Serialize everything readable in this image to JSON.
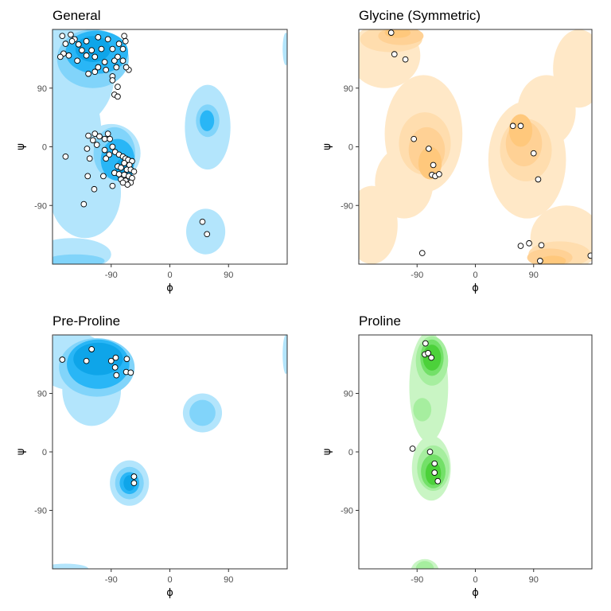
{
  "chart_data": [
    {
      "type": "scatter",
      "title": "General",
      "xlabel": "ϕ",
      "ylabel": "ψ",
      "xlim": [
        -180,
        180
      ],
      "ylim": [
        -180,
        180
      ],
      "xticks": [
        -90,
        0,
        90
      ],
      "yticks": [
        -90,
        0,
        90
      ],
      "colors": [
        "#B3E5FC",
        "#81D4FA",
        "#29B6F6",
        "#0EA5E9"
      ],
      "contours": [
        {
          "level": 1,
          "blobs": [
            [
              -165,
              110,
              80,
              85
            ],
            [
              -160,
              20,
              55,
              95
            ],
            [
              -130,
              -70,
              55,
              70
            ],
            [
              -90,
              -10,
              45,
              45
            ],
            [
              -150,
              -165,
              60,
              25
            ],
            [
              58,
              30,
              35,
              65
            ],
            [
              55,
              -130,
              30,
              35
            ],
            [
              178,
              150,
              5,
              25
            ]
          ]
        },
        {
          "level": 2,
          "blobs": [
            [
              -118,
              135,
              55,
              45
            ],
            [
              -85,
              -10,
              32,
              40
            ],
            [
              -145,
              -175,
              45,
              10
            ],
            [
              58,
              40,
              18,
              25
            ]
          ]
        },
        {
          "level": 3,
          "blobs": [
            [
              -112,
              145,
              48,
              33
            ],
            [
              -80,
              -20,
              26,
              32
            ],
            [
              57,
              40,
              11,
              16
            ]
          ]
        },
        {
          "level": 4,
          "blobs": [
            [
              -118,
              150,
              27,
              20
            ],
            [
              -70,
              -35,
              14,
              18
            ]
          ]
        }
      ],
      "points": [
        [
          -165,
          170
        ],
        [
          -152,
          172
        ],
        [
          -146,
          165
        ],
        [
          -160,
          158
        ],
        [
          -150,
          162
        ],
        [
          -140,
          157
        ],
        [
          -128,
          162
        ],
        [
          -110,
          168
        ],
        [
          -95,
          165
        ],
        [
          -70,
          170
        ],
        [
          -68,
          162
        ],
        [
          -78,
          158
        ],
        [
          -72,
          150
        ],
        [
          -88,
          150
        ],
        [
          -105,
          150
        ],
        [
          -120,
          148
        ],
        [
          -135,
          148
        ],
        [
          -163,
          143
        ],
        [
          -168,
          138
        ],
        [
          -155,
          140
        ],
        [
          -128,
          140
        ],
        [
          -115,
          138
        ],
        [
          -80,
          138
        ],
        [
          -72,
          132
        ],
        [
          -85,
          132
        ],
        [
          -100,
          130
        ],
        [
          -142,
          132
        ],
        [
          -98,
          118
        ],
        [
          -63,
          118
        ],
        [
          -67,
          122
        ],
        [
          -82,
          122
        ],
        [
          -110,
          122
        ],
        [
          -115,
          115
        ],
        [
          -125,
          112
        ],
        [
          -88,
          108
        ],
        [
          -88,
          102
        ],
        [
          -80,
          92
        ],
        [
          -85,
          80
        ],
        [
          -80,
          77
        ],
        [
          -125,
          17
        ],
        [
          -115,
          20
        ],
        [
          -108,
          16
        ],
        [
          -95,
          20
        ],
        [
          -100,
          12
        ],
        [
          -118,
          10
        ],
        [
          -92,
          12
        ],
        [
          -127,
          -3
        ],
        [
          -112,
          3
        ],
        [
          -88,
          0
        ],
        [
          -100,
          -5
        ],
        [
          -84,
          -8
        ],
        [
          -78,
          -12
        ],
        [
          -72,
          -15
        ],
        [
          -68,
          -18
        ],
        [
          -64,
          -20
        ],
        [
          -58,
          -22
        ],
        [
          -70,
          -25
        ],
        [
          -62,
          -28
        ],
        [
          -80,
          -30
        ],
        [
          -75,
          -32
        ],
        [
          -66,
          -35
        ],
        [
          -60,
          -35
        ],
        [
          -55,
          -38
        ],
        [
          -85,
          -40
        ],
        [
          -78,
          -42
        ],
        [
          -70,
          -43
        ],
        [
          -63,
          -45
        ],
        [
          -58,
          -48
        ],
        [
          -75,
          -50
        ],
        [
          -68,
          -52
        ],
        [
          -60,
          -55
        ],
        [
          -65,
          -58
        ],
        [
          -72,
          -55
        ],
        [
          -93,
          -12
        ],
        [
          -98,
          -18
        ],
        [
          -123,
          -18
        ],
        [
          -102,
          -45
        ],
        [
          -126,
          -45
        ],
        [
          -116,
          -65
        ],
        [
          -88,
          -60
        ],
        [
          -132,
          -88
        ],
        [
          -160,
          -15
        ],
        [
          50,
          -115
        ],
        [
          57,
          -134
        ]
      ]
    },
    {
      "type": "scatter",
      "title": "Glycine (Symmetric)",
      "xlabel": "ϕ",
      "ylabel": "ψ",
      "xlim": [
        -180,
        180
      ],
      "ylim": [
        -180,
        180
      ],
      "xticks": [
        -90,
        0,
        90
      ],
      "yticks": [
        -90,
        0,
        90
      ],
      "colors": [
        "#FFE8C7",
        "#FFDDAE",
        "#FFD195",
        "#FFC87C"
      ],
      "contours": [
        {
          "level": 1,
          "blobs": [
            [
              -140,
              140,
              55,
              50
            ],
            [
              -80,
              20,
              60,
              90
            ],
            [
              -110,
              -55,
              45,
              55
            ],
            [
              -160,
              -120,
              40,
              60
            ],
            [
              140,
              -140,
              55,
              50
            ],
            [
              80,
              -20,
              60,
              90
            ],
            [
              110,
              55,
              45,
              55
            ],
            [
              160,
              120,
              40,
              60
            ]
          ]
        },
        {
          "level": 2,
          "blobs": [
            [
              -130,
              165,
              48,
              20
            ],
            [
              -78,
              5,
              40,
              48
            ],
            [
              130,
              -165,
              48,
              20
            ],
            [
              78,
              -5,
              40,
              48
            ]
          ]
        },
        {
          "level": 3,
          "blobs": [
            [
              -115,
              170,
              35,
              14
            ],
            [
              -75,
              -5,
              28,
              35
            ],
            [
              115,
              -170,
              35,
              14
            ],
            [
              75,
              5,
              28,
              35
            ]
          ]
        },
        {
          "level": 4,
          "blobs": [
            [
              -120,
              175,
              20,
              8
            ],
            [
              -70,
              -25,
              18,
              25
            ],
            [
              120,
              -175,
              20,
              8
            ],
            [
              70,
              25,
              18,
              25
            ]
          ]
        }
      ],
      "points": [
        [
          -130,
          175
        ],
        [
          -125,
          142
        ],
        [
          -108,
          134
        ],
        [
          -95,
          12
        ],
        [
          -72,
          -3
        ],
        [
          -65,
          -28
        ],
        [
          -67,
          -43
        ],
        [
          -62,
          -45
        ],
        [
          -56,
          -42
        ],
        [
          58,
          32
        ],
        [
          70,
          32
        ],
        [
          90,
          -10
        ],
        [
          97,
          -50
        ],
        [
          -82,
          -163
        ],
        [
          70,
          -152
        ],
        [
          83,
          -148
        ],
        [
          102,
          -151
        ],
        [
          100,
          -175
        ],
        [
          178,
          -167
        ]
      ]
    },
    {
      "type": "scatter",
      "title": "Pre-Proline",
      "xlabel": "ϕ",
      "ylabel": "ψ",
      "xlim": [
        -180,
        180
      ],
      "ylim": [
        -180,
        180
      ],
      "xticks": [
        -90,
        0,
        90
      ],
      "yticks": [
        -90,
        0,
        90
      ],
      "colors": [
        "#B3E5FC",
        "#81D4FA",
        "#29B6F6",
        "#0EA5E9"
      ],
      "contours": [
        {
          "level": 1,
          "blobs": [
            [
              -150,
              140,
              55,
              45
            ],
            [
              -120,
              95,
              45,
              55
            ],
            [
              50,
              60,
              30,
              30
            ],
            [
              -62,
              -48,
              30,
              35
            ],
            [
              -160,
              -180,
              35,
              8
            ],
            [
              178,
              150,
              5,
              30
            ]
          ]
        },
        {
          "level": 2,
          "blobs": [
            [
              -112,
              130,
              58,
              45
            ],
            [
              50,
              60,
              20,
              20
            ],
            [
              -62,
              -48,
              22,
              25
            ]
          ]
        },
        {
          "level": 3,
          "blobs": [
            [
              -110,
              135,
              48,
              38
            ],
            [
              -62,
              -48,
              15,
              17
            ]
          ]
        },
        {
          "level": 4,
          "blobs": [
            [
              -110,
              143,
              38,
              25
            ],
            [
              -62,
              -48,
              9,
              12
            ]
          ]
        }
      ],
      "points": [
        [
          -165,
          142
        ],
        [
          -128,
          140
        ],
        [
          -120,
          158
        ],
        [
          -90,
          140
        ],
        [
          -83,
          145
        ],
        [
          -66,
          143
        ],
        [
          -84,
          130
        ],
        [
          -67,
          123
        ],
        [
          -60,
          122
        ],
        [
          -82,
          118
        ],
        [
          -55,
          -38
        ],
        [
          -55,
          -48
        ]
      ]
    },
    {
      "type": "scatter",
      "title": "Proline",
      "xlabel": "ϕ",
      "ylabel": "ψ",
      "xlim": [
        -180,
        180
      ],
      "ylim": [
        -180,
        180
      ],
      "xticks": [
        -90,
        0,
        90
      ],
      "yticks": [
        -90,
        0,
        90
      ],
      "colors": [
        "#C9F5C4",
        "#A6EE9F",
        "#73E068",
        "#4CD13A"
      ],
      "contours": [
        {
          "level": 1,
          "blobs": [
            [
              -72,
              100,
              30,
              85
            ],
            [
              -68,
              -25,
              30,
              50
            ],
            [
              -78,
              -185,
              22,
              20
            ]
          ]
        },
        {
          "level": 2,
          "blobs": [
            [
              -67,
              140,
              25,
              38
            ],
            [
              -82,
              65,
              14,
              18
            ],
            [
              -65,
              -25,
              25,
              35
            ],
            [
              -78,
              -180,
              14,
              12
            ]
          ]
        },
        {
          "level": 3,
          "blobs": [
            [
              -67,
              145,
              18,
              28
            ],
            [
              -65,
              -30,
              19,
              26
            ]
          ]
        },
        {
          "level": 4,
          "blobs": [
            [
              -67,
              145,
              14,
              20
            ],
            [
              -65,
              -33,
              12,
              18
            ]
          ]
        }
      ],
      "points": [
        [
          -77,
          167
        ],
        [
          -78,
          150
        ],
        [
          -73,
          152
        ],
        [
          -68,
          145
        ],
        [
          -97,
          5
        ],
        [
          -70,
          0
        ],
        [
          -63,
          -18
        ],
        [
          -63,
          -32
        ],
        [
          -58,
          -45
        ]
      ]
    }
  ]
}
